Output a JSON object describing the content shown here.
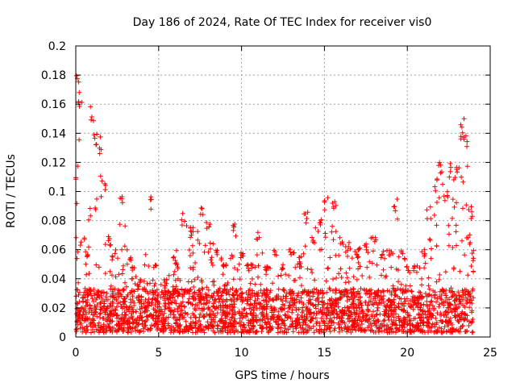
{
  "chart_data": {
    "type": "scatter",
    "title": "Day 186 of 2024, Rate Of TEC Index for receiver vis0",
    "xlabel": "GPS time / hours",
    "ylabel": "ROTI / TECUs",
    "xlim": [
      0,
      25
    ],
    "ylim": [
      0,
      0.2
    ],
    "x_ticks": [
      "0",
      "5",
      "10",
      "15",
      "20",
      "25"
    ],
    "y_ticks": [
      "0",
      "0.02",
      "0.04",
      "0.06",
      "0.08",
      "0.1",
      "0.12",
      "0.14",
      "0.16",
      "0.18",
      "0.2"
    ],
    "grid": true,
    "marker": "+",
    "series": [
      {
        "color": "#ff0000",
        "x_range": [
          0,
          24
        ],
        "baseline_max": 0.03,
        "envelope": [
          [
            0.0,
            0.12
          ],
          [
            0.15,
            0.185
          ],
          [
            0.25,
            0.17
          ],
          [
            0.4,
            0.07
          ],
          [
            0.7,
            0.06
          ],
          [
            1.0,
            0.165
          ],
          [
            1.2,
            0.14
          ],
          [
            1.5,
            0.14
          ],
          [
            1.7,
            0.11
          ],
          [
            2.0,
            0.07
          ],
          [
            2.3,
            0.06
          ],
          [
            2.8,
            0.1
          ],
          [
            3.2,
            0.055
          ],
          [
            3.5,
            0.05
          ],
          [
            4.0,
            0.04
          ],
          [
            4.5,
            0.097
          ],
          [
            4.8,
            0.05
          ],
          [
            5.5,
            0.04
          ],
          [
            6.0,
            0.055
          ],
          [
            6.5,
            0.085
          ],
          [
            7.0,
            0.075
          ],
          [
            7.6,
            0.09
          ],
          [
            8.0,
            0.08
          ],
          [
            8.5,
            0.06
          ],
          [
            9.0,
            0.05
          ],
          [
            9.5,
            0.08
          ],
          [
            10.0,
            0.06
          ],
          [
            10.5,
            0.05
          ],
          [
            11.0,
            0.072
          ],
          [
            11.5,
            0.05
          ],
          [
            12.0,
            0.06
          ],
          [
            12.5,
            0.05
          ],
          [
            13.0,
            0.06
          ],
          [
            13.5,
            0.055
          ],
          [
            13.9,
            0.087
          ],
          [
            14.3,
            0.07
          ],
          [
            14.7,
            0.085
          ],
          [
            15.1,
            0.097
          ],
          [
            15.6,
            0.093
          ],
          [
            16.0,
            0.07
          ],
          [
            16.5,
            0.065
          ],
          [
            17.0,
            0.06
          ],
          [
            17.5,
            0.065
          ],
          [
            18.0,
            0.07
          ],
          [
            18.5,
            0.06
          ],
          [
            19.0,
            0.06
          ],
          [
            19.3,
            0.095
          ],
          [
            19.6,
            0.06
          ],
          [
            20.0,
            0.05
          ],
          [
            20.5,
            0.05
          ],
          [
            21.0,
            0.06
          ],
          [
            21.3,
            0.09
          ],
          [
            21.7,
            0.11
          ],
          [
            22.0,
            0.12
          ],
          [
            22.3,
            0.1
          ],
          [
            22.6,
            0.12
          ],
          [
            23.0,
            0.12
          ],
          [
            23.3,
            0.15
          ],
          [
            23.5,
            0.145
          ],
          [
            23.8,
            0.09
          ],
          [
            24.0,
            0.06
          ]
        ]
      }
    ]
  }
}
